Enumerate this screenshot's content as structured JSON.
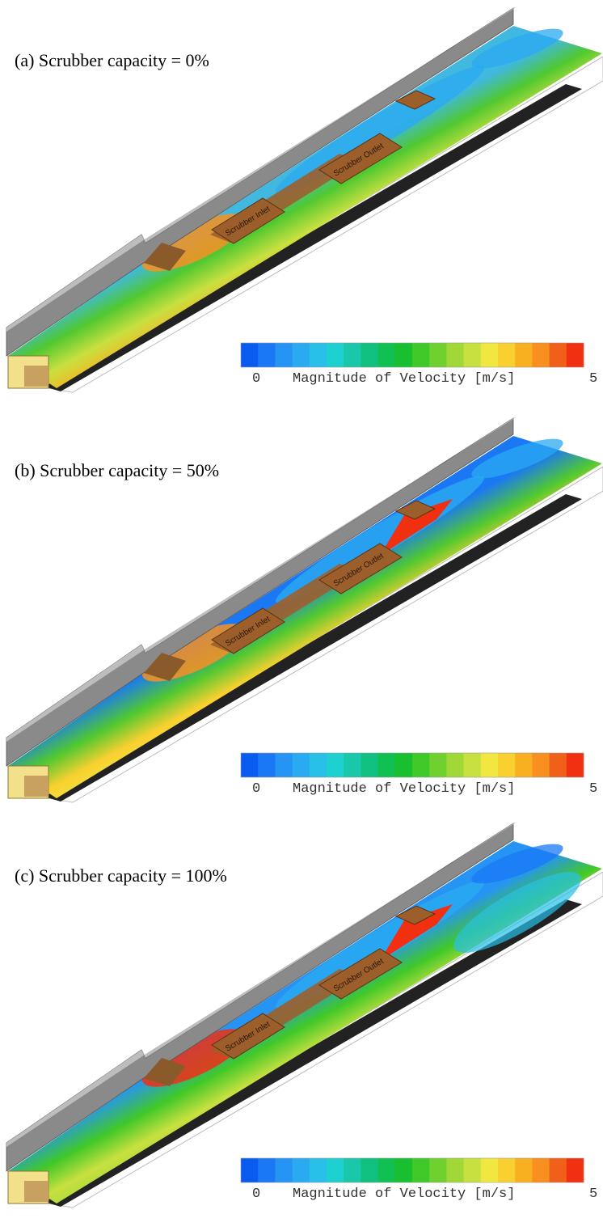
{
  "panels": [
    {
      "title": "(a) Scrubber capacity = 0%",
      "inlet_label": "Scrubber Inlet",
      "outlet_label": "Scrubber Outlet"
    },
    {
      "title": "(b) Scrubber capacity = 50%",
      "inlet_label": "Scrubber Inlet",
      "outlet_label": "Scrubber Outlet"
    },
    {
      "title": "(c) Scrubber capacity = 100%",
      "inlet_label": "Scrubber Inlet",
      "outlet_label": "Scrubber Outlet"
    }
  ],
  "colorbar": {
    "min": 0,
    "max": 5,
    "label": "Magnitude of Velocity [m/s]",
    "colors": [
      "#0a5cf0",
      "#1a78f5",
      "#2694f5",
      "#2aaaf0",
      "#28c0e8",
      "#1fd0d0",
      "#18c8a8",
      "#10c080",
      "#10c050",
      "#18c030",
      "#40c828",
      "#70d030",
      "#a0d838",
      "#c8e040",
      "#f0e840",
      "#f8d030",
      "#f8b020",
      "#f89020",
      "#f06018",
      "#f03010"
    ]
  }
}
